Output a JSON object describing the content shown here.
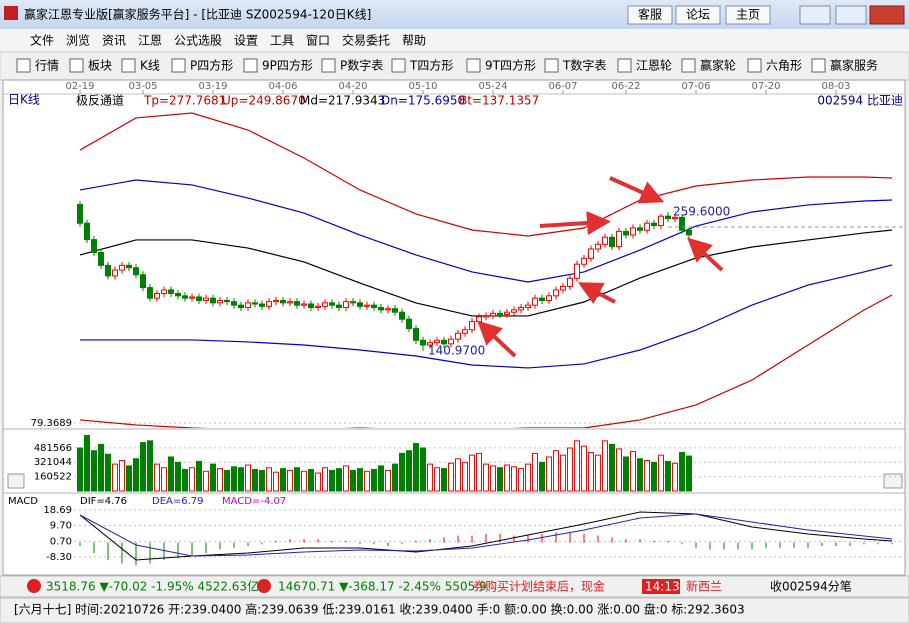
{
  "window": {
    "title": "赢家江恩专业版[赢家服务平台] - [比亚迪  SZ002594-120日K线]",
    "links": [
      "客服",
      "论坛",
      "主页"
    ]
  },
  "menu": [
    "文件",
    "浏览",
    "资讯",
    "江恩",
    "公式选股",
    "设置",
    "工具",
    "窗口",
    "交易委托",
    "帮助"
  ],
  "toolbar": [
    "行情",
    "板块",
    "K线",
    "P四方形",
    "9P四方形",
    "P数字表",
    "T四方形",
    "9T四方形",
    "T数字表",
    "江恩轮",
    "赢家轮",
    "六角形",
    "赢家服务"
  ],
  "period": "日K线",
  "indicator": "极反通道",
  "indicator_values": [
    "Tp=277.7681",
    "Up=249.8670",
    "Md=217.9343",
    "Dn=175.6950",
    "Bt=137.1357"
  ],
  "stock": "002594  比亚迪",
  "chart_data": [
    {
      "type": "candlestick",
      "xlim": [
        -1,
        117
      ],
      "xticks": [
        {
          "value": 0,
          "label": "02-19"
        },
        {
          "value": 9,
          "label": "03-05"
        },
        {
          "value": 19,
          "label": "03-19"
        },
        {
          "value": 29,
          "label": "04-06"
        },
        {
          "value": 39,
          "label": "04-20"
        },
        {
          "value": 49,
          "label": "05-10"
        },
        {
          "value": 59,
          "label": "05-24"
        },
        {
          "value": 69,
          "label": "06-07"
        },
        {
          "value": 78,
          "label": "06-22"
        },
        {
          "value": 88,
          "label": "07-06"
        },
        {
          "value": 98,
          "label": "07-20"
        },
        {
          "value": 108,
          "label": "08-03"
        }
      ],
      "ylim": [
        77.66,
        346.7
      ],
      "yticks": [
        79.3689
      ],
      "up_color": "#ff0000",
      "down_color": "#008000",
      "open": [
        266,
        250,
        236,
        225,
        214,
        205,
        210,
        214,
        212,
        206,
        195,
        186,
        190,
        193,
        190,
        188,
        186,
        187,
        184,
        186,
        182,
        184,
        183,
        180,
        178,
        182,
        181,
        179,
        183,
        184,
        182,
        183,
        180,
        181,
        178,
        179,
        182,
        180,
        178,
        183,
        182,
        179,
        180,
        178,
        176,
        177,
        174,
        168,
        160,
        150,
        146,
        148,
        150,
        147,
        151,
        156,
        159,
        166,
        170,
        171,
        173,
        172,
        174,
        176,
        178,
        180,
        186,
        184,
        188,
        193,
        196,
        203,
        215,
        220,
        228,
        232,
        238,
        230,
        243,
        240,
        246,
        244,
        250,
        248,
        256,
        254,
        255,
        244
      ],
      "high": [
        269,
        253,
        239,
        228,
        217,
        213,
        217,
        217,
        215,
        209,
        198,
        193,
        196,
        196,
        193,
        191,
        190,
        190,
        189,
        189,
        187,
        187,
        186,
        183,
        185,
        185,
        184,
        186,
        187,
        187,
        186,
        186,
        184,
        184,
        182,
        185,
        185,
        183,
        186,
        186,
        185,
        183,
        183,
        181,
        180,
        180,
        177,
        171,
        163,
        153,
        151,
        153,
        153,
        154,
        159,
        162,
        169,
        173,
        174,
        176,
        176,
        177,
        179,
        181,
        183,
        189,
        189,
        191,
        196,
        199,
        206,
        218,
        223,
        231,
        235,
        241,
        241,
        246,
        246,
        249,
        249,
        253,
        253,
        258,
        259.6,
        258,
        257,
        246
      ],
      "low": [
        247,
        233,
        222,
        211,
        202,
        202,
        207,
        209,
        203,
        192,
        183,
        183,
        187,
        187,
        185,
        183,
        183,
        181,
        181,
        179,
        179,
        180,
        177,
        175,
        175,
        178,
        176,
        176,
        180,
        179,
        179,
        177,
        177,
        175,
        175,
        176,
        177,
        175,
        175,
        179,
        176,
        176,
        175,
        173,
        173,
        171,
        165,
        157,
        147,
        140.97,
        143,
        145,
        144,
        144,
        148,
        153,
        156,
        163,
        167,
        168,
        169,
        169,
        171,
        173,
        175,
        177,
        181,
        181,
        185,
        190,
        193,
        200,
        212,
        217,
        225,
        229,
        227,
        227,
        237,
        237,
        241,
        241,
        245,
        245,
        251,
        251,
        241,
        237
      ],
      "close": [
        250,
        236,
        225,
        214,
        205,
        210,
        214,
        212,
        206,
        195,
        186,
        190,
        193,
        190,
        188,
        186,
        187,
        184,
        186,
        182,
        184,
        183,
        180,
        178,
        182,
        181,
        179,
        183,
        184,
        182,
        183,
        180,
        181,
        178,
        179,
        182,
        180,
        178,
        183,
        182,
        179,
        180,
        178,
        176,
        177,
        174,
        168,
        160,
        150,
        146,
        148,
        150,
        147,
        151,
        156,
        159,
        166,
        170,
        171,
        173,
        172,
        174,
        176,
        178,
        180,
        186,
        184,
        188,
        193,
        196,
        203,
        215,
        220,
        228,
        232,
        238,
        230,
        243,
        240,
        246,
        244,
        250,
        248,
        256,
        254,
        255,
        244,
        240
      ],
      "channel_x": [
        0,
        8,
        16,
        24,
        32,
        40,
        48,
        56,
        64,
        72,
        80,
        88,
        96,
        104,
        112,
        116
      ],
      "channels": [
        {
          "color": "#d00000",
          "values": [
            312.5,
            339.9,
            344.1,
            329.6,
            305.7,
            278.4,
            257.9,
            244.2,
            239.1,
            245.9,
            269.8,
            281.8,
            286.9,
            289.5,
            289.5,
            288.6
          ]
        },
        {
          "color": "#0000c8",
          "values": [
            278.4,
            286.9,
            282.7,
            271.5,
            258.7,
            239.9,
            222.9,
            208.4,
            199.8,
            208.4,
            227.1,
            247.6,
            259.6,
            265.6,
            269.0,
            269.8
          ]
        },
        {
          "color": "#000000",
          "values": [
            222.9,
            235.7,
            235.7,
            228.8,
            216.9,
            198.9,
            181.9,
            170.8,
            170.8,
            182.7,
            203.2,
            220.3,
            229.7,
            235.7,
            241.7,
            244.2
          ]
        },
        {
          "color": "#0000c8",
          "values": [
            150.3,
            150.3,
            150.3,
            148.6,
            146.0,
            141.7,
            136.6,
            128.9,
            126.4,
            129.8,
            141.7,
            158.8,
            180.1,
            197.2,
            208.4,
            214.3
          ]
        },
        {
          "color": "#d00000",
          "values": [
            82.0,
            77.7,
            75.1,
            73.4,
            73.4,
            75.1,
            73.4,
            73.4,
            75.1,
            75.1,
            82.0,
            94.8,
            116.1,
            146.0,
            175.9,
            188.7
          ]
        }
      ],
      "annotations": [
        {
          "x": 84,
          "value": 259.6,
          "label": "259.6000"
        },
        {
          "x": 49,
          "value": 140.97,
          "label": "140.9700"
        }
      ]
    },
    {
      "type": "bar",
      "ylim": [
        0,
        658700
      ],
      "yticks": [
        160522,
        321044,
        481566
      ],
      "values": [
        480000,
        620000,
        450000,
        520000,
        410000,
        300000,
        340000,
        280000,
        360000,
        540000,
        560000,
        300000,
        260000,
        380000,
        320000,
        240000,
        260000,
        330000,
        220000,
        300000,
        250000,
        230000,
        270000,
        260000,
        290000,
        240000,
        230000,
        260000,
        210000,
        250000,
        230000,
        260000,
        220000,
        240000,
        200000,
        260000,
        230000,
        250000,
        280000,
        230000,
        250000,
        220000,
        240000,
        280000,
        230000,
        300000,
        420000,
        450000,
        530000,
        480000,
        300000,
        260000,
        250000,
        310000,
        360000,
        320000,
        400000,
        420000,
        300000,
        280000,
        260000,
        290000,
        270000,
        250000,
        300000,
        420000,
        320000,
        380000,
        450000,
        400000,
        480000,
        560000,
        500000,
        430000,
        400000,
        560000,
        520000,
        470000,
        380000,
        440000,
        360000,
        340000,
        320000,
        400000,
        330000,
        310000,
        430000,
        390000
      ]
    },
    {
      "type": "macd",
      "title": "MACD",
      "ylim": [
        -14.03,
        22.71
      ],
      "yticks": [
        {
          "value": 18.69,
          "label": "18.69"
        },
        {
          "value": 9.7,
          "label": "9.70"
        },
        {
          "value": 0.7,
          "label": "0.70"
        },
        {
          "value": -8.3,
          "label": "-8.30"
        }
      ],
      "legend": [
        "DIF=4.76",
        "DEA=6.79",
        "MACD=-4.07"
      ],
      "series": [
        {
          "color": "#000000",
          "x": [
            0,
            8,
            16,
            24,
            32,
            40,
            48,
            56,
            64,
            72,
            80,
            88,
            96,
            104,
            112,
            116
          ],
          "values": [
            15.82,
            -10.01,
            -7.71,
            -5.99,
            -3.12,
            -3.12,
            -5.42,
            -1.97,
            4.34,
            10.65,
            17.54,
            16.39,
            8.93,
            4.91,
            2.04,
            0.9
          ]
        },
        {
          "color": "#2020c0",
          "x": [
            0,
            8,
            16,
            24,
            32,
            40,
            48,
            56,
            64,
            72,
            80,
            88,
            96,
            104,
            112,
            116
          ],
          "values": [
            15.82,
            -1.4,
            -7.71,
            -7.14,
            -5.42,
            -4.27,
            -4.84,
            -3.12,
            1.47,
            7.21,
            14.1,
            16.39,
            11.8,
            7.21,
            3.77,
            2.04
          ]
        }
      ],
      "histogram": {
        "up_color": "#ff0000",
        "down_color": "#008000",
        "x": [
          0,
          2,
          4,
          6,
          8,
          10,
          12,
          14,
          16,
          18,
          20,
          22,
          24,
          26,
          28,
          30,
          32,
          34,
          36,
          38,
          40,
          42,
          44,
          46,
          48,
          50,
          52,
          54,
          56,
          58,
          60,
          62,
          64,
          66,
          68,
          70,
          72,
          74,
          76,
          78,
          80,
          82,
          84,
          86,
          88,
          90,
          92,
          94,
          96,
          98,
          100,
          102,
          104,
          106,
          108,
          110,
          112,
          114,
          116
        ],
        "values": [
          -2,
          -6,
          -10,
          -12,
          -13,
          -12,
          -10,
          -9,
          -8,
          -6,
          -4,
          -3,
          -2,
          -1,
          1,
          2,
          2,
          2,
          1,
          1,
          -1,
          -1,
          -2,
          -1,
          1,
          2,
          3,
          4,
          4,
          5,
          5,
          4,
          4,
          5,
          6,
          6,
          5,
          4,
          3,
          2,
          2,
          1,
          1,
          -1,
          -3,
          -4,
          -4,
          -4,
          -4,
          -3,
          -3,
          -3,
          -3,
          -2,
          -2,
          -2,
          -1,
          -1,
          -1
        ]
      }
    }
  ],
  "status": [
    "3518.76 ▼-70.02 -1.95% 4522.63亿",
    "14670.71 ▼-368.17 -2.45% 5505.9",
    "券购买计划结束后，现金",
    "14:13",
    "新西兰",
    "收002594分笔"
  ],
  "info_bar": "[六月十七] 时间:20210726 开:239.0400 高:239.0639 低:239.0161 收:239.0400 手:0 额:0.00 换:0.00 涨:0.00 盘:0 标:292.3603"
}
